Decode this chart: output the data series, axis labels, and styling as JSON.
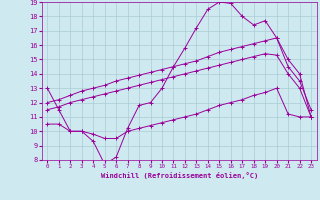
{
  "xlabel": "Windchill (Refroidissement éolien,°C)",
  "xlim": [
    -0.5,
    23.5
  ],
  "ylim": [
    8,
    19
  ],
  "yticks": [
    8,
    9,
    10,
    11,
    12,
    13,
    14,
    15,
    16,
    17,
    18,
    19
  ],
  "xticks": [
    0,
    1,
    2,
    3,
    4,
    5,
    6,
    7,
    8,
    9,
    10,
    11,
    12,
    13,
    14,
    15,
    16,
    17,
    18,
    19,
    20,
    21,
    22,
    23
  ],
  "bg_color": "#cfe9f0",
  "line_color": "#990099",
  "grid_color": "#aaccd4",
  "lines": [
    {
      "x": [
        0,
        1,
        2,
        3,
        4,
        5,
        6,
        7,
        8,
        9,
        10,
        11,
        12,
        13,
        14,
        15,
        16,
        17,
        18,
        19,
        20,
        21,
        22,
        23
      ],
      "y": [
        13.0,
        11.5,
        10.0,
        10.0,
        9.3,
        7.7,
        8.2,
        10.2,
        11.8,
        12.0,
        13.0,
        14.5,
        15.8,
        17.2,
        18.5,
        19.0,
        18.9,
        18.0,
        17.4,
        17.7,
        16.5,
        15.0,
        14.0,
        11.0
      ]
    },
    {
      "x": [
        0,
        1,
        2,
        3,
        4,
        5,
        6,
        7,
        8,
        9,
        10,
        11,
        12,
        13,
        14,
        15,
        16,
        17,
        18,
        19,
        20,
        21,
        22,
        23
      ],
      "y": [
        10.5,
        10.5,
        10.0,
        10.0,
        9.8,
        9.5,
        9.5,
        10.0,
        10.2,
        10.4,
        10.6,
        10.8,
        11.0,
        11.2,
        11.5,
        11.8,
        12.0,
        12.2,
        12.5,
        12.7,
        13.0,
        11.2,
        11.0,
        11.0
      ]
    },
    {
      "x": [
        0,
        1,
        2,
        3,
        4,
        5,
        6,
        7,
        8,
        9,
        10,
        11,
        12,
        13,
        14,
        15,
        16,
        17,
        18,
        19,
        20,
        21,
        22,
        23
      ],
      "y": [
        11.5,
        11.7,
        12.0,
        12.2,
        12.4,
        12.6,
        12.8,
        13.0,
        13.2,
        13.4,
        13.6,
        13.8,
        14.0,
        14.2,
        14.4,
        14.6,
        14.8,
        15.0,
        15.2,
        15.4,
        15.3,
        14.0,
        13.0,
        11.0
      ]
    },
    {
      "x": [
        0,
        1,
        2,
        3,
        4,
        5,
        6,
        7,
        8,
        9,
        10,
        11,
        12,
        13,
        14,
        15,
        16,
        17,
        18,
        19,
        20,
        21,
        22,
        23
      ],
      "y": [
        12.0,
        12.2,
        12.5,
        12.8,
        13.0,
        13.2,
        13.5,
        13.7,
        13.9,
        14.1,
        14.3,
        14.5,
        14.7,
        14.9,
        15.2,
        15.5,
        15.7,
        15.9,
        16.1,
        16.3,
        16.5,
        14.5,
        13.5,
        11.5
      ]
    }
  ]
}
